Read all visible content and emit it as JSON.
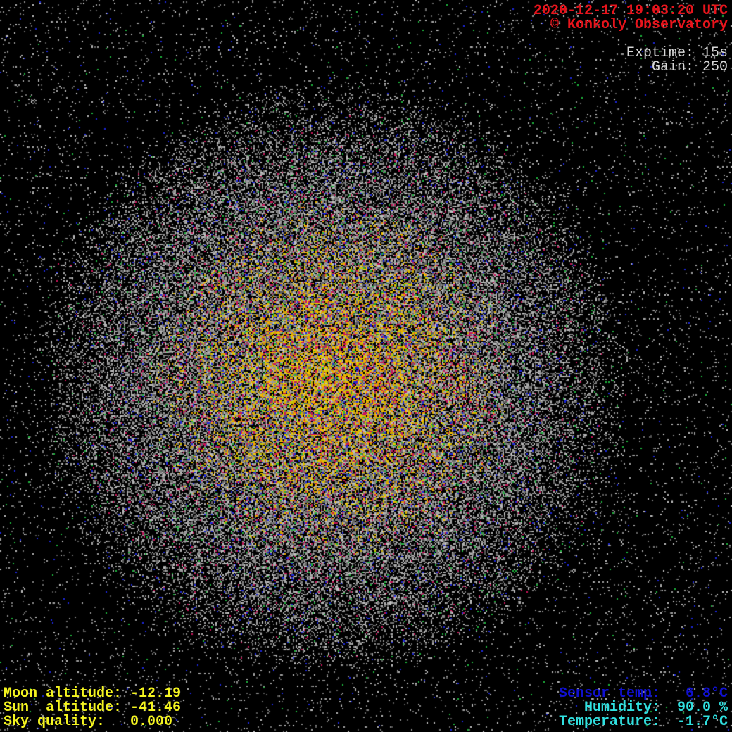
{
  "header": {
    "timestamp": "2020-12-17 19:03:20 UTC",
    "copyright": "© Konkoly Observatory",
    "exptime": "Exptime: 15s",
    "gain": "Gain: 250"
  },
  "bottom_left": {
    "moon_altitude": "Moon altitude: -12.19",
    "sun_altitude": "Sun  altitude: -41.46",
    "sky_quality": "Sky quality:   0.000"
  },
  "bottom_right": {
    "sensor_temp": "Sensor temp:   6.8°C",
    "humidity": "Humidity:  90.0 %",
    "temperature": "Temperature:  -1.7°C"
  },
  "colors": {
    "timestamp": "#e8141c",
    "camera_info": "#d8d8d8",
    "ephemeris": "#f4f420",
    "sensor_temp": "#1010d0",
    "weather": "#30e0e0"
  }
}
